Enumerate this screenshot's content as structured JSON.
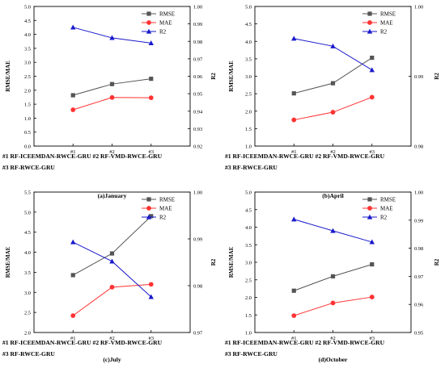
{
  "colors": {
    "rmse": "#555555",
    "mae": "#ff3333",
    "r2": "#1a1acc",
    "axis": "#000000"
  },
  "legend_labels": [
    "RMSE",
    "MAE",
    "R2"
  ],
  "chart_data": [
    {
      "type": "line",
      "caption": "(a)January",
      "categories": [
        "#1",
        "#2",
        "#3"
      ],
      "footnote_line1": "#1 RF-ICEEMDAN-RWCE-GRU #2 RF-VMD-RWCE-GRU",
      "footnote_line2": "#3 RF-RWCE-GRU",
      "ylabel": "RMSE/MAE",
      "y2label": "R2",
      "ylim": [
        0,
        5
      ],
      "yticks": [
        "0.0",
        "0.5",
        "1.0",
        "1.5",
        "2.0",
        "2.5",
        "3.0",
        "3.5",
        "4.0",
        "4.5",
        "5.0"
      ],
      "y2lim": [
        0.92,
        1.0
      ],
      "y2ticks": [
        "0.92",
        "0.93",
        "0.94",
        "0.95",
        "0.96",
        "0.97",
        "0.98",
        "0.99",
        "1.00"
      ],
      "series": [
        {
          "name": "RMSE",
          "axis": "left",
          "values": [
            1.82,
            2.22,
            2.41
          ]
        },
        {
          "name": "MAE",
          "axis": "left",
          "values": [
            1.3,
            1.74,
            1.73
          ]
        },
        {
          "name": "R2",
          "axis": "right",
          "values": [
            0.988,
            0.982,
            0.979
          ]
        }
      ]
    },
    {
      "type": "line",
      "caption": "(b)April",
      "categories": [
        "#1",
        "#2",
        "#3"
      ],
      "footnote_line1": "#1 RF-ICEEMDAN-RWCE-GRU #2 RF-VMD-RWCE-GRU",
      "footnote_line2": "#3 RF-RWCE-GRU",
      "ylabel": "RMSE/MAE",
      "y2label": "R2",
      "ylim": [
        1.0,
        5.0
      ],
      "yticks": [
        "1.0",
        "1.5",
        "2.0",
        "2.5",
        "3.0",
        "3.5",
        "4.0",
        "4.5",
        "5.0"
      ],
      "y2lim": [
        0.98,
        1.0
      ],
      "y2ticks": [
        "0.98",
        "0.99",
        "1.00"
      ],
      "series": [
        {
          "name": "RMSE",
          "axis": "left",
          "values": [
            2.51,
            2.8,
            3.53
          ]
        },
        {
          "name": "MAE",
          "axis": "left",
          "values": [
            1.75,
            1.97,
            2.4
          ]
        },
        {
          "name": "R2",
          "axis": "right",
          "values": [
            0.9954,
            0.9943,
            0.9909
          ]
        }
      ]
    },
    {
      "type": "line",
      "caption": "(c)July",
      "categories": [
        "#1",
        "#2",
        "#3"
      ],
      "footnote_line1": "#1 RF-ICEEMDAN-RWCE-GRU #2 RF-VMD-RWCE-GRU",
      "footnote_line2": "#3 RF-RWCE-GRU",
      "ylabel": "RMSE/MAE",
      "y2label": "R2",
      "ylim": [
        2.0,
        5.5
      ],
      "yticks": [
        "2.0",
        "2.5",
        "3.0",
        "3.5",
        "4.0",
        "4.5",
        "5.0",
        "5.5"
      ],
      "y2lim": [
        0.97,
        1.0
      ],
      "y2ticks": [
        "0.97",
        "0.98",
        "0.99",
        "1.00"
      ],
      "series": [
        {
          "name": "RMSE",
          "axis": "left",
          "values": [
            3.43,
            3.97,
            4.9
          ]
        },
        {
          "name": "MAE",
          "axis": "left",
          "values": [
            2.42,
            3.13,
            3.2
          ]
        },
        {
          "name": "R2",
          "axis": "right",
          "values": [
            0.9893,
            0.9852,
            0.9776
          ]
        }
      ]
    },
    {
      "type": "line",
      "caption": "(d)October",
      "categories": [
        "#1",
        "#2",
        "#3"
      ],
      "footnote_line1": "#1 RF-ICEEMDAN-RWCE-GRU #2 RF-VMD-RWCE-GRU",
      "footnote_line2": "#3 RF-RWCE-GRU",
      "ylabel": "RMSE/MAE",
      "y2label": "R2",
      "ylim": [
        1.0,
        5.0
      ],
      "yticks": [
        "1.0",
        "1.5",
        "2.0",
        "2.5",
        "3.0",
        "3.5",
        "4.0",
        "4.5",
        "5.0"
      ],
      "y2lim": [
        0.95,
        1.0
      ],
      "y2ticks": [
        "0.95",
        "0.96",
        "0.97",
        "0.98",
        "0.99",
        "1.00"
      ],
      "series": [
        {
          "name": "RMSE",
          "axis": "left",
          "values": [
            2.19,
            2.6,
            2.94
          ]
        },
        {
          "name": "MAE",
          "axis": "left",
          "values": [
            1.48,
            1.84,
            2.01
          ]
        },
        {
          "name": "R2",
          "axis": "right",
          "values": [
            0.9903,
            0.9862,
            0.9822
          ]
        }
      ]
    }
  ]
}
